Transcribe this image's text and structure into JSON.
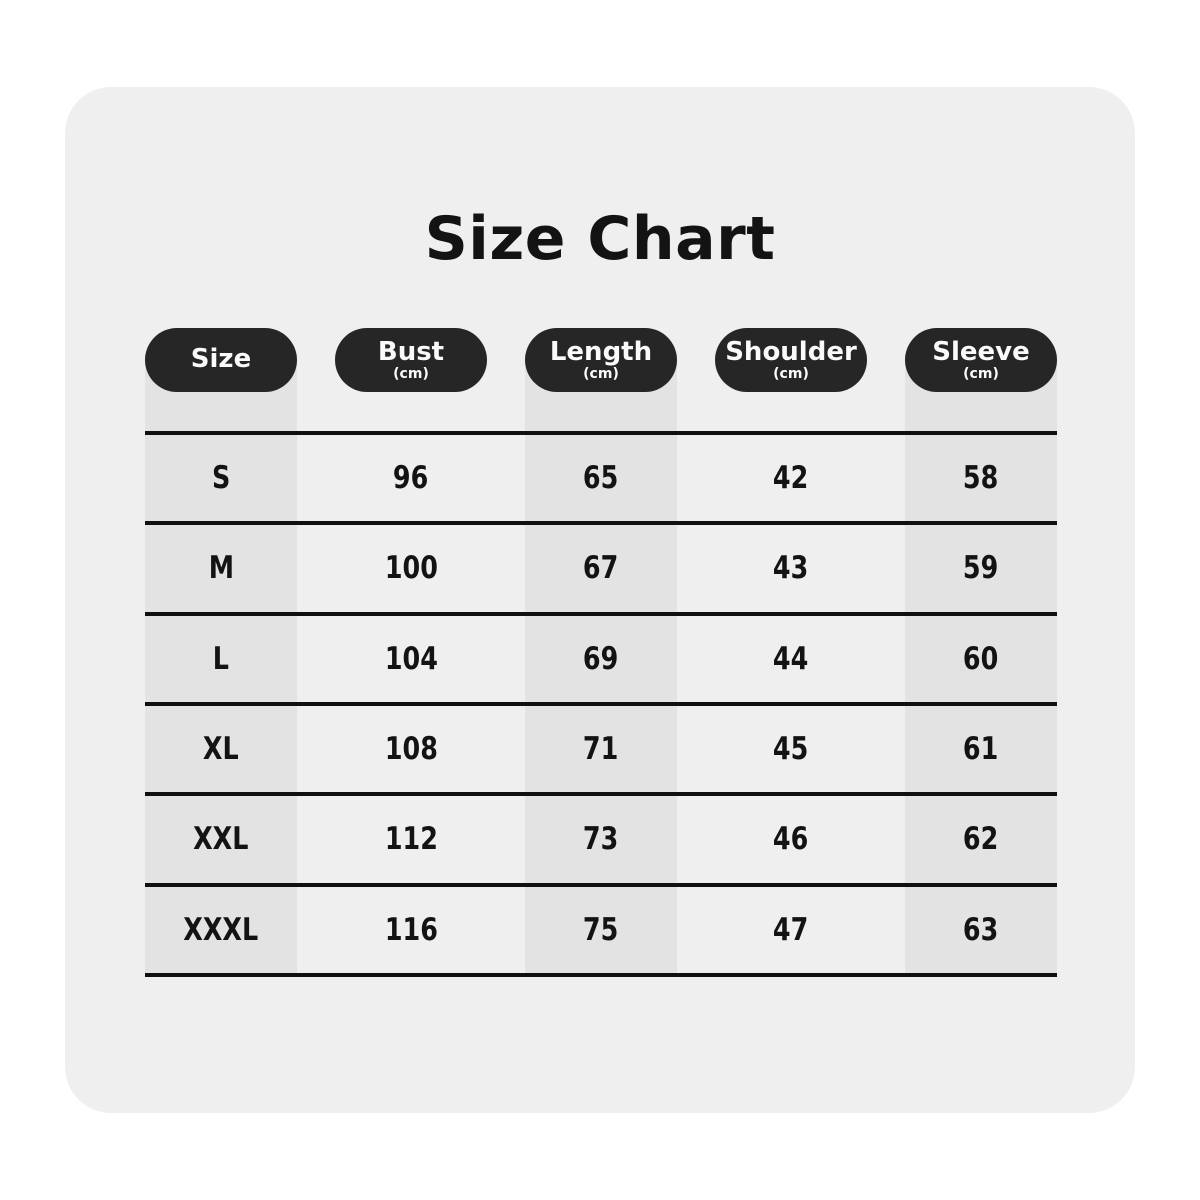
{
  "title": "Size Chart",
  "colors": {
    "page_bg": "#ffffff",
    "card_bg": "#efefef",
    "stripe": "#e3e3e3",
    "pill_bg": "#262626",
    "pill_text": "#fafafa",
    "line": "#101010",
    "text": "#131313"
  },
  "chart_data": {
    "type": "table",
    "title": "Size Chart",
    "columns": [
      {
        "label": "Size",
        "unit": ""
      },
      {
        "label": "Bust",
        "unit": "(cm)"
      },
      {
        "label": "Length",
        "unit": "(cm)"
      },
      {
        "label": "Shoulder",
        "unit": "(cm)"
      },
      {
        "label": "Sleeve",
        "unit": "(cm)"
      }
    ],
    "striped_column_indexes": [
      0,
      2,
      4
    ],
    "rows": [
      [
        "S",
        "96",
        "65",
        "42",
        "58"
      ],
      [
        "M",
        "100",
        "67",
        "43",
        "59"
      ],
      [
        "L",
        "104",
        "69",
        "44",
        "60"
      ],
      [
        "XL",
        "108",
        "71",
        "45",
        "61"
      ],
      [
        "XXL",
        "112",
        "73",
        "46",
        "62"
      ],
      [
        "XXXL",
        "116",
        "75",
        "47",
        "63"
      ]
    ]
  }
}
